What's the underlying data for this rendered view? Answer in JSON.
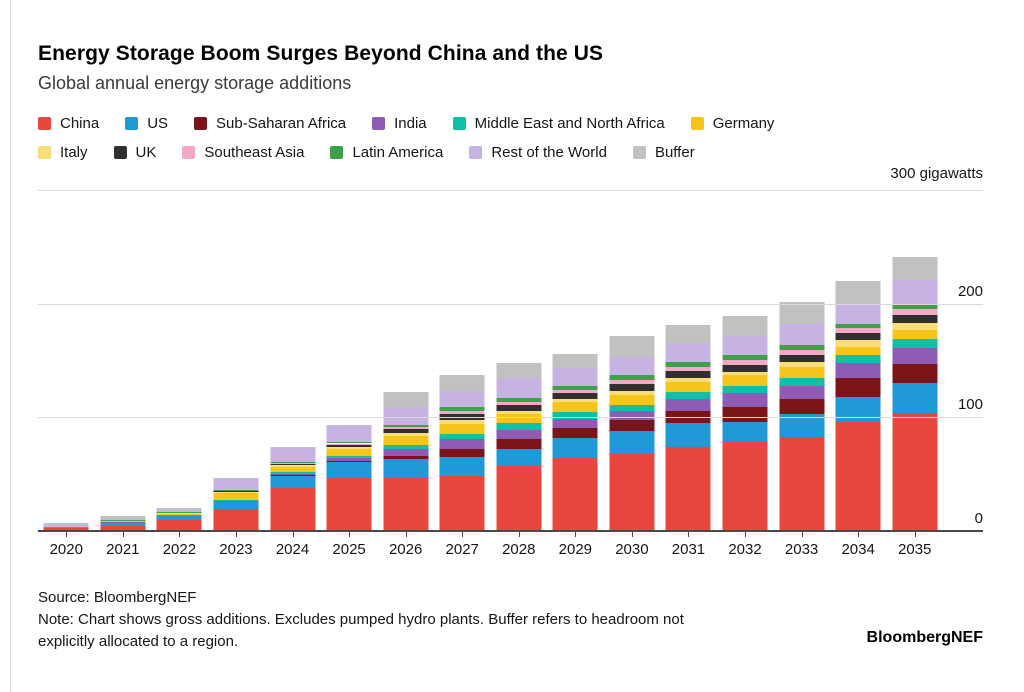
{
  "header": {
    "title": "Energy Storage Boom Surges Beyond China and the US",
    "subtitle": "Global annual energy storage additions"
  },
  "axis": {
    "unit_label": "300 gigawatts",
    "y_tick_labels": [
      "0",
      "100",
      "200"
    ],
    "gridline_values": [
      0,
      100,
      200,
      300
    ]
  },
  "footer": {
    "source": "Source: BloombergNEF",
    "note_line1": "Note: Chart shows gross additions. Excludes pumped hydro plants. Buffer refers to headroom not",
    "note_line2": "explicitly allocated to a region.",
    "brand": "BloombergNEF"
  },
  "chart_data": {
    "type": "bar",
    "stacked": true,
    "title": "Energy Storage Boom Surges Beyond China and the US",
    "subtitle": "Global annual energy storage additions",
    "unit": "gigawatts",
    "ylim": [
      0,
      300
    ],
    "grid": true,
    "legend_position": "top",
    "categories": [
      "2020",
      "2021",
      "2022",
      "2023",
      "2024",
      "2025",
      "2026",
      "2027",
      "2028",
      "2029",
      "2030",
      "2031",
      "2032",
      "2033",
      "2034",
      "2035"
    ],
    "legend_rows": [
      [
        0,
        1,
        2,
        3,
        4,
        5
      ],
      [
        6,
        7,
        8,
        9,
        10,
        11
      ]
    ],
    "series": [
      {
        "name": "China",
        "color": "#e8473e",
        "values": [
          2.5,
          4,
          10,
          19,
          38,
          47,
          47,
          48,
          57,
          64,
          68,
          74,
          78,
          83,
          96,
          104
        ]
      },
      {
        "name": "US",
        "color": "#1f9ad6",
        "values": [
          1,
          4,
          3.5,
          7,
          11,
          14,
          16,
          17,
          15,
          18,
          20,
          21,
          18,
          20,
          22,
          26
        ]
      },
      {
        "name": "Sub-Saharan Africa",
        "color": "#7a1416",
        "values": [
          0.1,
          0.1,
          0.2,
          0.3,
          0.5,
          1,
          3,
          7,
          9,
          9,
          9.5,
          11,
          13,
          13,
          17,
          17
        ]
      },
      {
        "name": "India",
        "color": "#8f5cb5",
        "values": [
          0.1,
          0.2,
          0.3,
          0.5,
          1,
          2,
          6,
          9,
          8,
          7.5,
          8,
          10,
          12,
          12,
          13,
          14
        ]
      },
      {
        "name": "Middle East and North Africa",
        "color": "#0fc0a7",
        "values": [
          0.1,
          0.3,
          0.3,
          0.5,
          1,
          2,
          3.5,
          4.5,
          6,
          6,
          5.5,
          6,
          7,
          7,
          7,
          8
        ]
      },
      {
        "name": "Germany",
        "color": "#f6c51b",
        "values": [
          0.4,
          0.5,
          1.2,
          6,
          5,
          6,
          8,
          9,
          8,
          9,
          9,
          9,
          9,
          9,
          7,
          8
        ]
      },
      {
        "name": "Italy",
        "color": "#f9dd76",
        "values": [
          0.2,
          0.3,
          0.5,
          1,
          1.5,
          2,
          2.5,
          3.5,
          3,
          3,
          3.5,
          4,
          3,
          4.5,
          6,
          6
        ]
      },
      {
        "name": "UK",
        "color": "#312f30",
        "values": [
          0.3,
          0.4,
          0.5,
          1.5,
          1.5,
          2,
          4,
          5,
          5,
          4.5,
          5.5,
          5.5,
          6,
          6,
          6,
          7
        ]
      },
      {
        "name": "Southeast Asia",
        "color": "#f3a8c8",
        "values": [
          0.1,
          0.1,
          0.3,
          0.2,
          0.5,
          1,
          1.5,
          2.5,
          2.5,
          3,
          3.5,
          4,
          4.5,
          4.5,
          4.5,
          5
        ]
      },
      {
        "name": "Latin America",
        "color": "#3da14a",
        "values": [
          0.1,
          0.1,
          0.2,
          0.5,
          1,
          1.5,
          2,
          3.5,
          3.5,
          3.5,
          4.5,
          4.5,
          4.5,
          4.5,
          3.5,
          4
        ]
      },
      {
        "name": "Rest of the World",
        "color": "#c7b3e2",
        "values": [
          0.5,
          1,
          1.5,
          10,
          12,
          14,
          16,
          14,
          18,
          16,
          16,
          16,
          17,
          19,
          18,
          22
        ]
      },
      {
        "name": "Buffer",
        "color": "#c1c1c1",
        "values": [
          1.5,
          2,
          1.5,
          0.5,
          1,
          1,
          13,
          14,
          13,
          12,
          19,
          16,
          17,
          19,
          20,
          20
        ]
      }
    ]
  },
  "colors": {
    "gridline": "#d9d9d9",
    "axis": "#4a4a4a",
    "text": "#161616"
  }
}
